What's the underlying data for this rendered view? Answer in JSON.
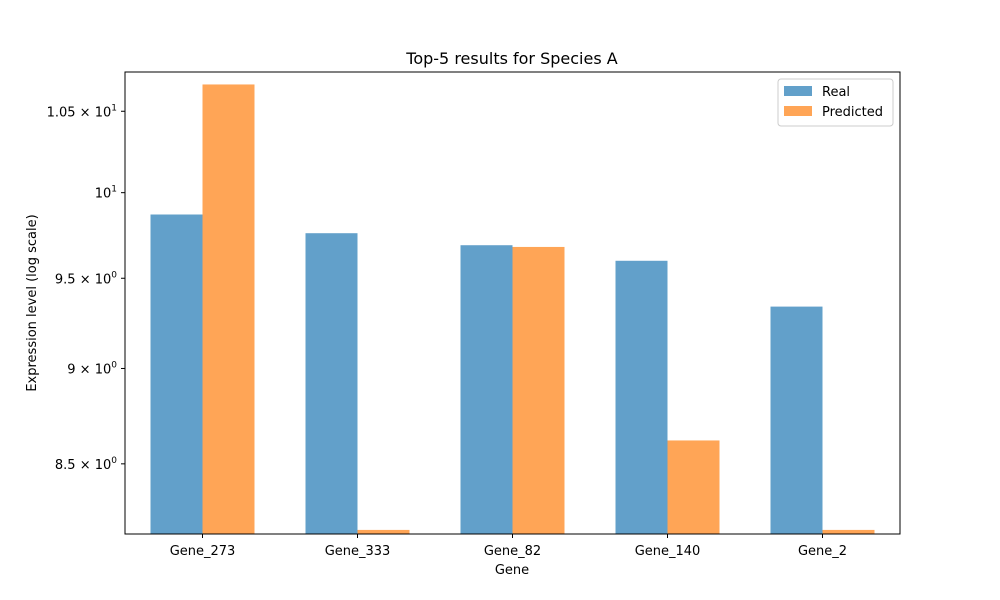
{
  "chart_data": {
    "type": "bar",
    "title": "Top-5 results for Species A",
    "xlabel": "Gene",
    "ylabel": "Expression level (log scale)",
    "yscale": "log",
    "categories": [
      "Gene_273",
      "Gene_333",
      "Gene_82",
      "Gene_140",
      "Gene_2"
    ],
    "series": [
      {
        "name": "Real",
        "color": "#62a0ca",
        "values": [
          9.87,
          9.76,
          9.69,
          9.6,
          9.34
        ]
      },
      {
        "name": "Predicted",
        "color": "#ffa556",
        "values": [
          10.67,
          8.17,
          9.68,
          8.62,
          8.17
        ]
      }
    ],
    "ylim": [
      8.15,
      10.75
    ],
    "yticks": [
      {
        "value": 8.5,
        "mant": "8.5",
        "exp": "0",
        "has_base": true
      },
      {
        "value": 9.0,
        "mant": "9",
        "exp": "0",
        "has_base": true
      },
      {
        "value": 9.5,
        "mant": "9.5",
        "exp": "0",
        "has_base": true
      },
      {
        "value": 10.0,
        "mant": "10",
        "exp": "1",
        "has_base": false
      },
      {
        "value": 10.5,
        "mant": "1.05",
        "exp": "1",
        "has_base": true
      }
    ],
    "legend": "top-right",
    "grid": false
  }
}
